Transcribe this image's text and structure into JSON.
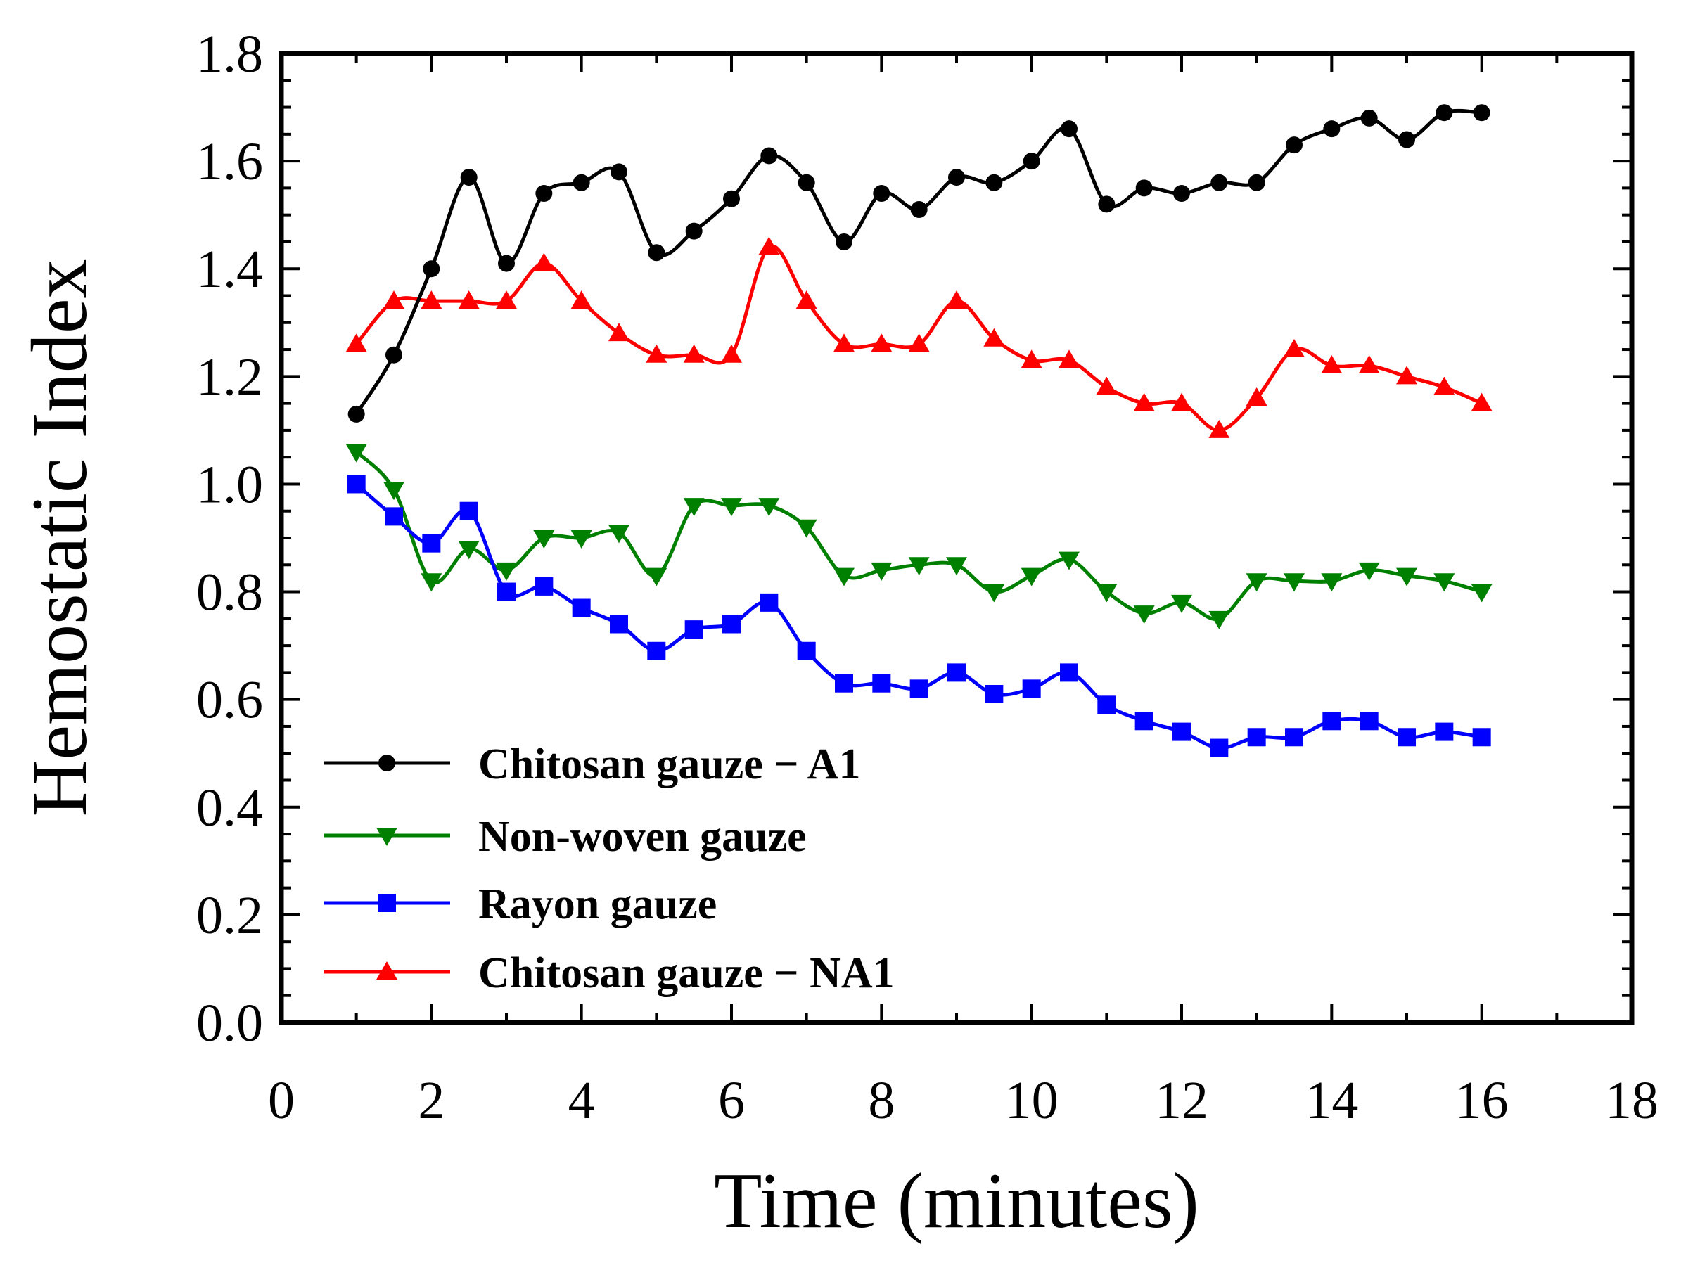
{
  "chart_data": {
    "type": "line",
    "title": "",
    "xlabel": "Time (minutes)",
    "ylabel": "Hemostatic Index",
    "xlim": [
      0,
      18
    ],
    "ylim": [
      0.0,
      1.8
    ],
    "xticks": [
      "0",
      "2",
      "4",
      "6",
      "8",
      "10",
      "12",
      "14",
      "16",
      "18"
    ],
    "yticks": [
      "0.0",
      "0.2",
      "0.4",
      "0.6",
      "0.8",
      "1.0",
      "1.2",
      "1.4",
      "1.6",
      "1.8"
    ],
    "grid": false,
    "legend_position": "lower-left",
    "x": [
      1,
      1.5,
      2,
      2.5,
      3,
      3.5,
      4,
      4.5,
      5,
      5.5,
      6,
      6.5,
      7,
      7.5,
      8,
      8.5,
      9,
      9.5,
      10,
      10.5,
      11,
      11.5,
      12,
      12.5,
      13,
      13.5,
      14,
      14.5,
      15,
      15.5,
      16
    ],
    "series": [
      {
        "name": "Chitosan gauze − A1",
        "color": "#000000",
        "marker": "circle",
        "values": [
          1.13,
          1.24,
          1.4,
          1.57,
          1.41,
          1.54,
          1.56,
          1.58,
          1.43,
          1.47,
          1.53,
          1.61,
          1.56,
          1.45,
          1.54,
          1.51,
          1.57,
          1.56,
          1.6,
          1.66,
          1.52,
          1.55,
          1.54,
          1.56,
          1.56,
          1.63,
          1.66,
          1.68,
          1.64,
          1.69,
          1.69
        ]
      },
      {
        "name": "Non-woven gauze",
        "color": "#008000",
        "marker": "triangle-down",
        "values": [
          1.06,
          0.99,
          0.82,
          0.88,
          0.84,
          0.9,
          0.9,
          0.91,
          0.83,
          0.96,
          0.96,
          0.96,
          0.92,
          0.83,
          0.84,
          0.85,
          0.85,
          0.8,
          0.83,
          0.86,
          0.8,
          0.76,
          0.78,
          0.75,
          0.82,
          0.82,
          0.82,
          0.84,
          0.83,
          0.82,
          0.8
        ]
      },
      {
        "name": "Rayon gauze",
        "color": "#0000ff",
        "marker": "square",
        "values": [
          1.0,
          0.94,
          0.89,
          0.95,
          0.8,
          0.81,
          0.77,
          0.74,
          0.69,
          0.73,
          0.74,
          0.78,
          0.69,
          0.63,
          0.63,
          0.62,
          0.65,
          0.61,
          0.62,
          0.65,
          0.59,
          0.56,
          0.54,
          0.51,
          0.53,
          0.53,
          0.56,
          0.56,
          0.53,
          0.54,
          0.53
        ]
      },
      {
        "name": "Chitosan gauze − NA1",
        "color": "#ff0000",
        "marker": "triangle-up",
        "values": [
          1.26,
          1.34,
          1.34,
          1.34,
          1.34,
          1.41,
          1.34,
          1.28,
          1.24,
          1.24,
          1.24,
          1.44,
          1.34,
          1.26,
          1.26,
          1.26,
          1.34,
          1.27,
          1.23,
          1.23,
          1.18,
          1.15,
          1.15,
          1.1,
          1.16,
          1.25,
          1.22,
          1.22,
          1.2,
          1.18,
          1.15
        ]
      }
    ]
  }
}
